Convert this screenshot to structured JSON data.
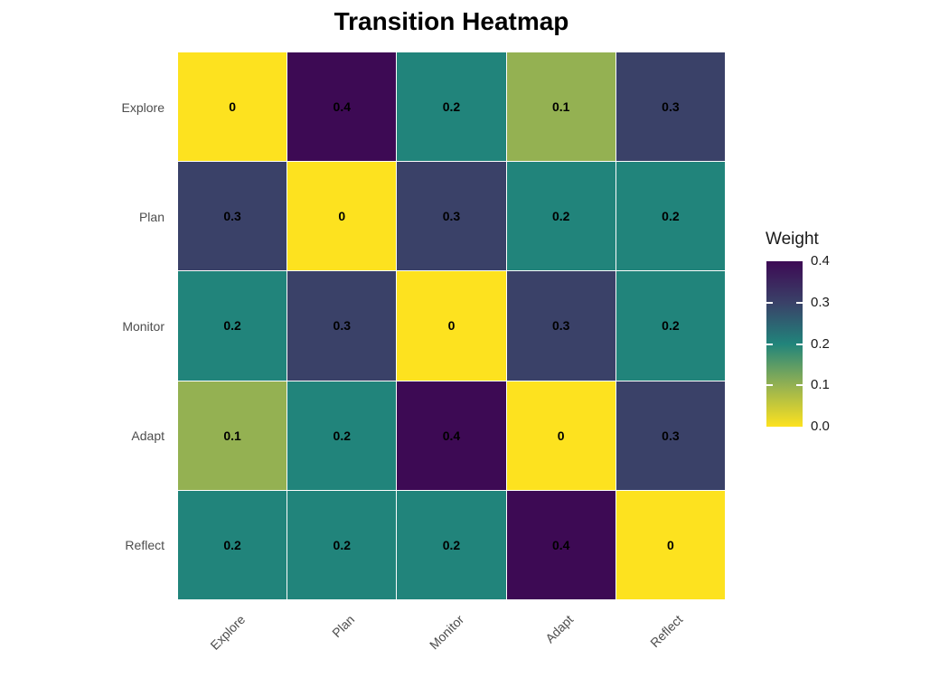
{
  "chart_data": {
    "type": "heatmap",
    "title": "Transition Heatmap",
    "x_categories": [
      "Explore",
      "Plan",
      "Monitor",
      "Adapt",
      "Reflect"
    ],
    "y_categories": [
      "Explore",
      "Plan",
      "Monitor",
      "Adapt",
      "Reflect"
    ],
    "values": [
      [
        0,
        0.4,
        0.2,
        0.1,
        0.3
      ],
      [
        0.3,
        0,
        0.3,
        0.2,
        0.2
      ],
      [
        0.2,
        0.3,
        0,
        0.3,
        0.2
      ],
      [
        0.1,
        0.2,
        0.4,
        0,
        0.3
      ],
      [
        0.2,
        0.2,
        0.2,
        0.4,
        0
      ]
    ],
    "legend": {
      "title": "Weight",
      "tick_labels": [
        "0.4",
        "0.3",
        "0.2",
        "0.1",
        "0.0"
      ],
      "min": 0.0,
      "max": 0.4,
      "position": "right"
    },
    "colorscale": {
      "0": "#FDE21F",
      "0.1": "#94B152",
      "0.2": "#21847B",
      "0.3": "#3A4168",
      "0.4": "#3D0A54"
    },
    "axis_text_color": "#4D4D4D",
    "cell_label_color": "#000000",
    "grid": false
  }
}
